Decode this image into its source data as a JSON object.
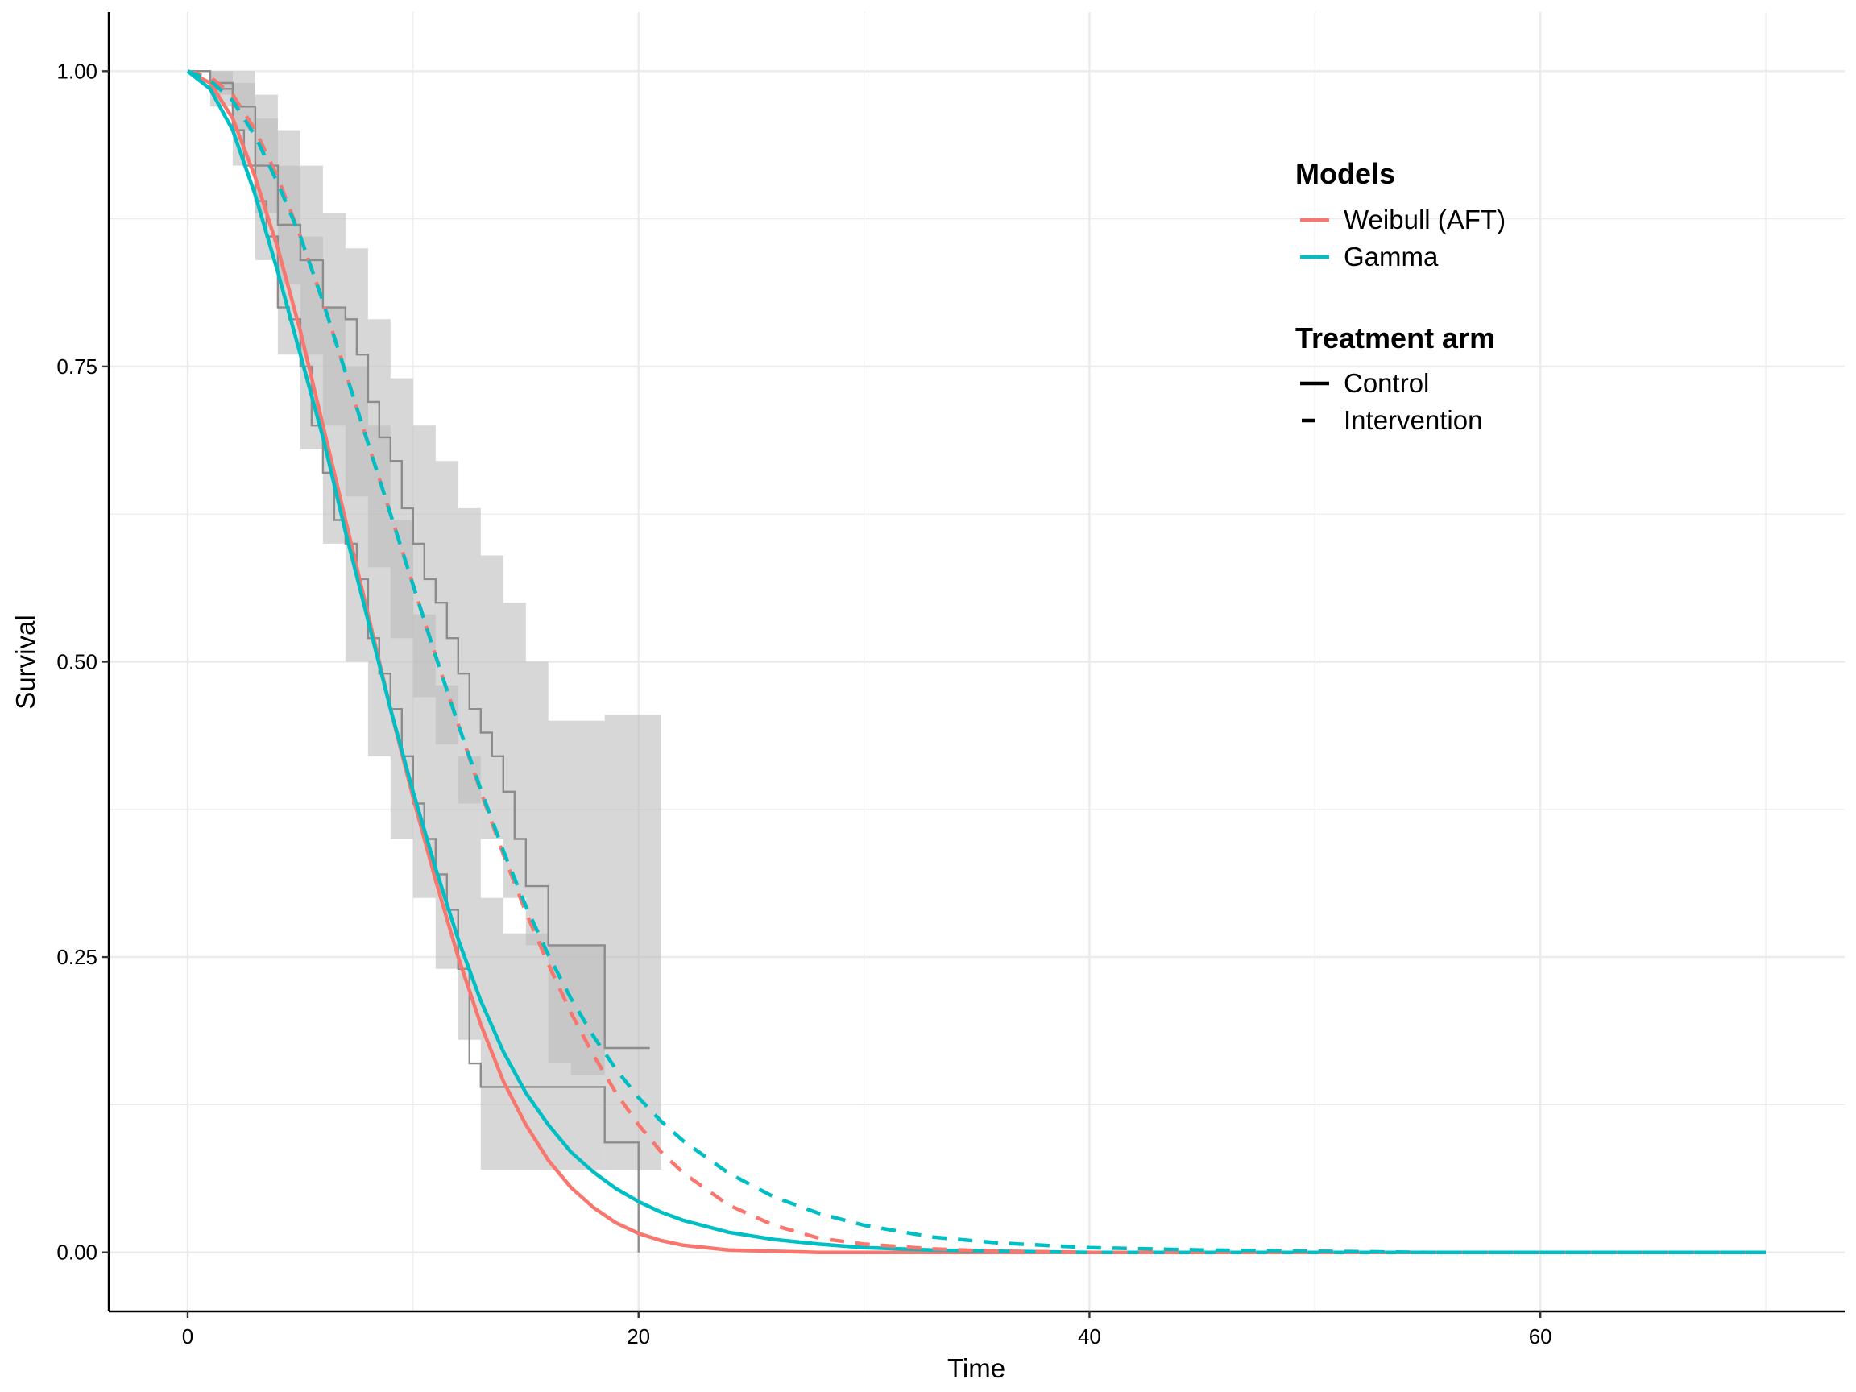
{
  "chart_data": {
    "type": "line",
    "xlabel": "Time",
    "ylabel": "Survival",
    "xlim": [
      -3.5,
      73.5
    ],
    "ylim": [
      -0.05,
      1.05
    ],
    "x_ticks": [
      {
        "value": 0,
        "label": "0"
      },
      {
        "value": 20,
        "label": "20"
      },
      {
        "value": 40,
        "label": "40"
      },
      {
        "value": 60,
        "label": "60"
      }
    ],
    "y_ticks": [
      {
        "value": 0,
        "label": "0.00"
      },
      {
        "value": 0.25,
        "label": "0.25"
      },
      {
        "value": 0.5,
        "label": "0.50"
      },
      {
        "value": 0.75,
        "label": "0.75"
      },
      {
        "value": 1,
        "label": "1.00"
      }
    ],
    "grid": true,
    "legend_position": "top-right",
    "legend": {
      "models": {
        "title": "Models",
        "items": [
          {
            "label": "Weibull (AFT)",
            "color": "#F8766D"
          },
          {
            "label": "Gamma",
            "color": "#00BFC4"
          }
        ]
      },
      "arms": {
        "title": "Treatment arm",
        "items": [
          {
            "label": "Control",
            "linetype": "solid"
          },
          {
            "label": "Intervention",
            "linetype": "dashed"
          }
        ]
      }
    },
    "colors": {
      "weibull": "#F8766D",
      "gamma": "#00BFC4",
      "km_step": "#8c8c8c",
      "ci_band": "#bdbdbd"
    },
    "x": [
      0,
      1,
      2,
      3,
      4,
      5,
      6,
      7,
      8,
      9,
      10,
      11,
      12,
      13,
      14,
      15,
      16,
      17,
      18,
      19,
      20,
      21,
      22,
      24,
      26,
      28,
      30,
      33,
      36,
      40,
      45,
      50,
      55,
      60,
      65,
      70
    ],
    "series": [
      {
        "name": "Weibull (AFT)",
        "arm": "Control",
        "model": "Weibull (AFT)",
        "values": [
          1.0,
          0.99,
          0.96,
          0.91,
          0.85,
          0.78,
          0.7,
          0.62,
          0.54,
          0.46,
          0.385,
          0.315,
          0.25,
          0.193,
          0.145,
          0.108,
          0.078,
          0.055,
          0.038,
          0.025,
          0.016,
          0.01,
          0.006,
          0.002,
          0.001,
          0,
          0,
          0,
          0,
          0,
          0,
          0,
          0,
          0,
          0,
          0
        ]
      },
      {
        "name": "Gamma",
        "arm": "Control",
        "model": "Gamma",
        "values": [
          1.0,
          0.985,
          0.95,
          0.895,
          0.83,
          0.76,
          0.69,
          0.61,
          0.535,
          0.46,
          0.39,
          0.325,
          0.265,
          0.213,
          0.17,
          0.135,
          0.108,
          0.085,
          0.068,
          0.054,
          0.043,
          0.034,
          0.027,
          0.017,
          0.011,
          0.007,
          0.004,
          0.002,
          0.001,
          0,
          0,
          0,
          0,
          0,
          0,
          0
        ]
      },
      {
        "name": "Weibull (AFT)",
        "arm": "Intervention",
        "model": "Weibull (AFT)",
        "values": [
          1.0,
          0.995,
          0.98,
          0.95,
          0.91,
          0.86,
          0.805,
          0.745,
          0.685,
          0.625,
          0.565,
          0.505,
          0.447,
          0.39,
          0.337,
          0.288,
          0.244,
          0.203,
          0.167,
          0.135,
          0.108,
          0.085,
          0.067,
          0.04,
          0.023,
          0.012,
          0.007,
          0.003,
          0.001,
          0,
          0,
          0,
          0,
          0,
          0,
          0
        ]
      },
      {
        "name": "Gamma",
        "arm": "Intervention",
        "model": "Gamma",
        "values": [
          1.0,
          0.992,
          0.975,
          0.945,
          0.905,
          0.86,
          0.805,
          0.745,
          0.685,
          0.625,
          0.565,
          0.505,
          0.447,
          0.392,
          0.34,
          0.293,
          0.252,
          0.215,
          0.183,
          0.155,
          0.131,
          0.111,
          0.094,
          0.067,
          0.047,
          0.033,
          0.023,
          0.013,
          0.008,
          0.004,
          0.002,
          0.001,
          0,
          0,
          0,
          0
        ]
      }
    ],
    "km_curves": [
      {
        "arm": "Control",
        "times": [
          0,
          1,
          2,
          2.5,
          3,
          3.5,
          4,
          4.5,
          5,
          5.5,
          6,
          6.5,
          7,
          7.5,
          8,
          8.5,
          9,
          9.5,
          10,
          10.5,
          11,
          11.5,
          12,
          12.5,
          13,
          14,
          15,
          16,
          17,
          18.5,
          19.5,
          20
        ],
        "surv": [
          1.0,
          0.985,
          0.95,
          0.92,
          0.89,
          0.86,
          0.8,
          0.79,
          0.75,
          0.7,
          0.66,
          0.62,
          0.6,
          0.57,
          0.52,
          0.49,
          0.46,
          0.42,
          0.38,
          0.35,
          0.32,
          0.29,
          0.24,
          0.16,
          0.14,
          0.14,
          0.14,
          0.14,
          0.14,
          0.093,
          0.093,
          0.0
        ]
      },
      {
        "arm": "Intervention",
        "times": [
          0,
          1,
          2,
          3,
          4,
          5,
          6,
          7,
          7.5,
          8,
          8.5,
          9,
          9.5,
          10,
          10.5,
          11,
          11.5,
          12,
          12.5,
          13,
          13.5,
          14,
          14.5,
          15,
          16,
          17,
          18.5,
          19,
          20,
          20.5
        ],
        "surv": [
          1.0,
          0.99,
          0.97,
          0.92,
          0.87,
          0.84,
          0.8,
          0.79,
          0.76,
          0.72,
          0.69,
          0.67,
          0.63,
          0.6,
          0.57,
          0.55,
          0.52,
          0.49,
          0.46,
          0.44,
          0.42,
          0.39,
          0.35,
          0.31,
          0.26,
          0.26,
          0.173,
          0.173,
          0.173,
          0.173
        ]
      }
    ],
    "ci_bands": [
      {
        "arm": "Control",
        "times": [
          0,
          1,
          2,
          3,
          4,
          5,
          6,
          7,
          8,
          9,
          10,
          11,
          12,
          13,
          14,
          15,
          16,
          17,
          18.5
        ],
        "lower": [
          1.0,
          0.97,
          0.92,
          0.84,
          0.76,
          0.68,
          0.6,
          0.5,
          0.42,
          0.35,
          0.3,
          0.24,
          0.18,
          0.07,
          0.07,
          0.07,
          0.07,
          0.07,
          0.03
        ],
        "upper": [
          1.0,
          1.0,
          0.99,
          0.96,
          0.92,
          0.86,
          0.8,
          0.75,
          0.7,
          0.62,
          0.54,
          0.48,
          0.42,
          0.3,
          0.27,
          0.27,
          0.26,
          0.26,
          0.26
        ]
      },
      {
        "arm": "Intervention",
        "times": [
          0,
          1,
          2,
          3,
          4,
          5,
          6,
          7,
          8,
          9,
          10,
          11,
          12,
          13,
          14,
          15,
          16,
          17,
          18.5,
          21
        ],
        "lower": [
          1.0,
          0.98,
          0.95,
          0.88,
          0.82,
          0.76,
          0.7,
          0.64,
          0.58,
          0.52,
          0.47,
          0.43,
          0.38,
          0.35,
          0.3,
          0.26,
          0.16,
          0.15,
          0.07,
          0.07
        ],
        "upper": [
          1.0,
          1.0,
          1.0,
          0.98,
          0.95,
          0.92,
          0.88,
          0.85,
          0.79,
          0.74,
          0.7,
          0.67,
          0.63,
          0.59,
          0.55,
          0.5,
          0.45,
          0.45,
          0.455,
          0.455
        ]
      }
    ]
  }
}
